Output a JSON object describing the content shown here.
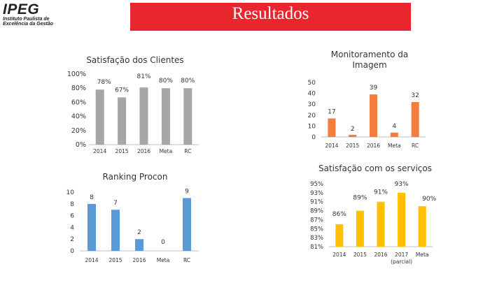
{
  "logo": {
    "name": "IPEG",
    "line1": "Instituto Paulista de",
    "line2": "Excelência da Gestão"
  },
  "banner": {
    "title": "Resultados"
  },
  "chart_data": [
    {
      "id": "satisfacao-clientes",
      "type": "bar",
      "title": "Satisfação dos Clientes",
      "categories": [
        "2014",
        "2015",
        "2016",
        "Meta",
        "RC"
      ],
      "values": [
        78,
        67,
        81,
        80,
        80
      ],
      "value_labels": [
        "78%",
        "67%",
        "81%",
        "80%",
        "80%"
      ],
      "yticks": [
        "0%",
        "20%",
        "40%",
        "60%",
        "80%",
        "100%"
      ],
      "ylim": [
        0,
        100
      ],
      "color": "#a6a6a6",
      "grid": false,
      "legend": false
    },
    {
      "id": "monitoramento-imagem",
      "type": "bar",
      "title": "Monitoramento da Imagem",
      "categories": [
        "2014",
        "2015",
        "2016",
        "Meta",
        "RC"
      ],
      "values": [
        17,
        2,
        39,
        4,
        32
      ],
      "value_labels": [
        "17",
        "2",
        "39",
        "4",
        "32"
      ],
      "yticks": [
        "0",
        "10",
        "20",
        "30",
        "40",
        "50"
      ],
      "ylim": [
        0,
        50
      ],
      "color": "#f47c3c",
      "grid": false,
      "legend": false
    },
    {
      "id": "ranking-procon",
      "type": "bar",
      "title": "Ranking Procon",
      "categories": [
        "2014",
        "2015",
        "2016",
        "Meta",
        "RC"
      ],
      "values": [
        8,
        7,
        2,
        0,
        9
      ],
      "value_labels": [
        "8",
        "7",
        "2",
        "0",
        "9"
      ],
      "yticks": [
        "0",
        "2",
        "4",
        "6",
        "8",
        "10"
      ],
      "ylim": [
        0,
        10
      ],
      "color": "#5b9bd5",
      "grid": false,
      "legend": false
    },
    {
      "id": "satisfacao-servicos",
      "type": "bar",
      "title": "Satisfação com os serviços",
      "categories": [
        "2014",
        "2015",
        "2016",
        "2017 (parcial)",
        "Meta"
      ],
      "values": [
        86,
        89,
        91,
        93,
        90
      ],
      "value_labels": [
        "86%",
        "89%",
        "91%",
        "93%",
        "90%"
      ],
      "yticks": [
        "81%",
        "83%",
        "85%",
        "87%",
        "89%",
        "91%",
        "93%",
        "95%"
      ],
      "ylim": [
        81,
        95
      ],
      "color": "#ffc000",
      "grid": false,
      "legend": false
    }
  ]
}
